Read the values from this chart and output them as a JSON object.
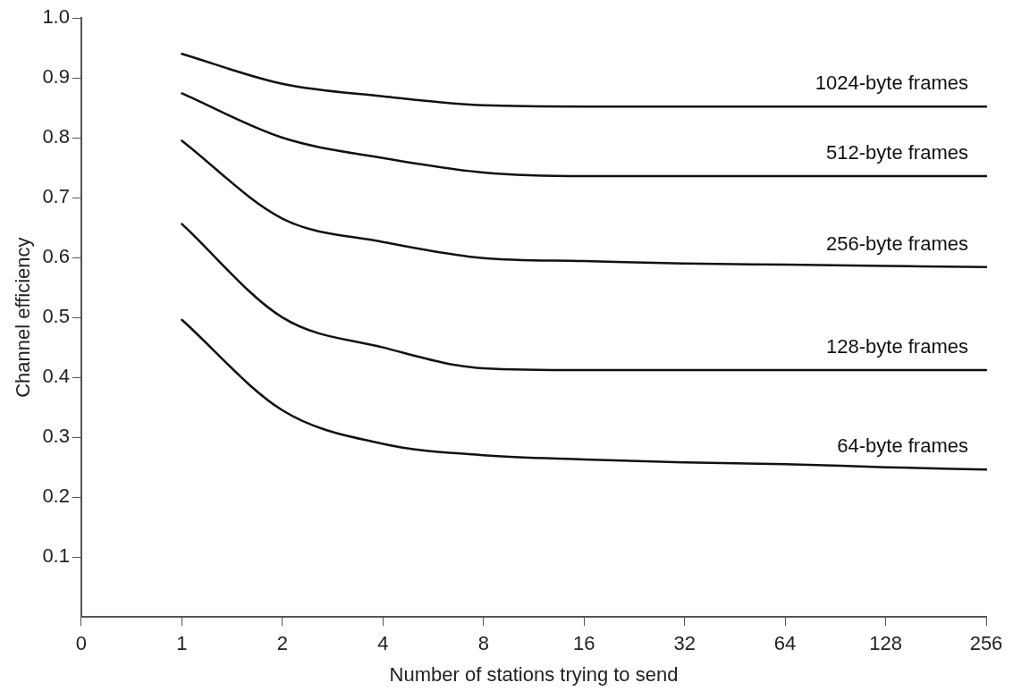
{
  "chart_data": {
    "type": "line",
    "xlabel": "Number of stations trying to send",
    "ylabel": "Channel efficiency",
    "categories": [
      "0",
      "1",
      "2",
      "4",
      "8",
      "16",
      "32",
      "64",
      "128",
      "256"
    ],
    "ylim": [
      0,
      1.0
    ],
    "yticks": [
      0.1,
      0.2,
      0.3,
      0.4,
      0.5,
      0.6,
      0.7,
      0.8,
      0.9,
      {
        "value": 1.0,
        "label": "1.0"
      }
    ],
    "grid": false,
    "legend": false,
    "marker": "none",
    "line_style": "solid",
    "series": [
      {
        "name": "1024-byte frames",
        "color": "#111111",
        "values": [
          null,
          0.94,
          0.89,
          0.869,
          0.854,
          0.852,
          0.852,
          0.852,
          0.852,
          0.852
        ]
      },
      {
        "name": "512-byte frames",
        "color": "#111111",
        "values": [
          null,
          0.874,
          0.8,
          0.766,
          0.742,
          0.736,
          0.736,
          0.736,
          0.736,
          0.736
        ]
      },
      {
        "name": "256-byte frames",
        "color": "#111111",
        "values": [
          null,
          0.795,
          0.665,
          0.626,
          0.599,
          0.594,
          0.59,
          0.588,
          0.586,
          0.584
        ]
      },
      {
        "name": "128-byte frames",
        "color": "#111111",
        "values": [
          null,
          0.656,
          0.5,
          0.45,
          0.415,
          0.412,
          0.412,
          0.412,
          0.412,
          0.412
        ]
      },
      {
        "name": "64-byte frames",
        "color": "#111111",
        "values": [
          null,
          0.496,
          0.345,
          0.289,
          0.27,
          0.263,
          0.258,
          0.255,
          0.25,
          0.246
        ]
      }
    ]
  }
}
